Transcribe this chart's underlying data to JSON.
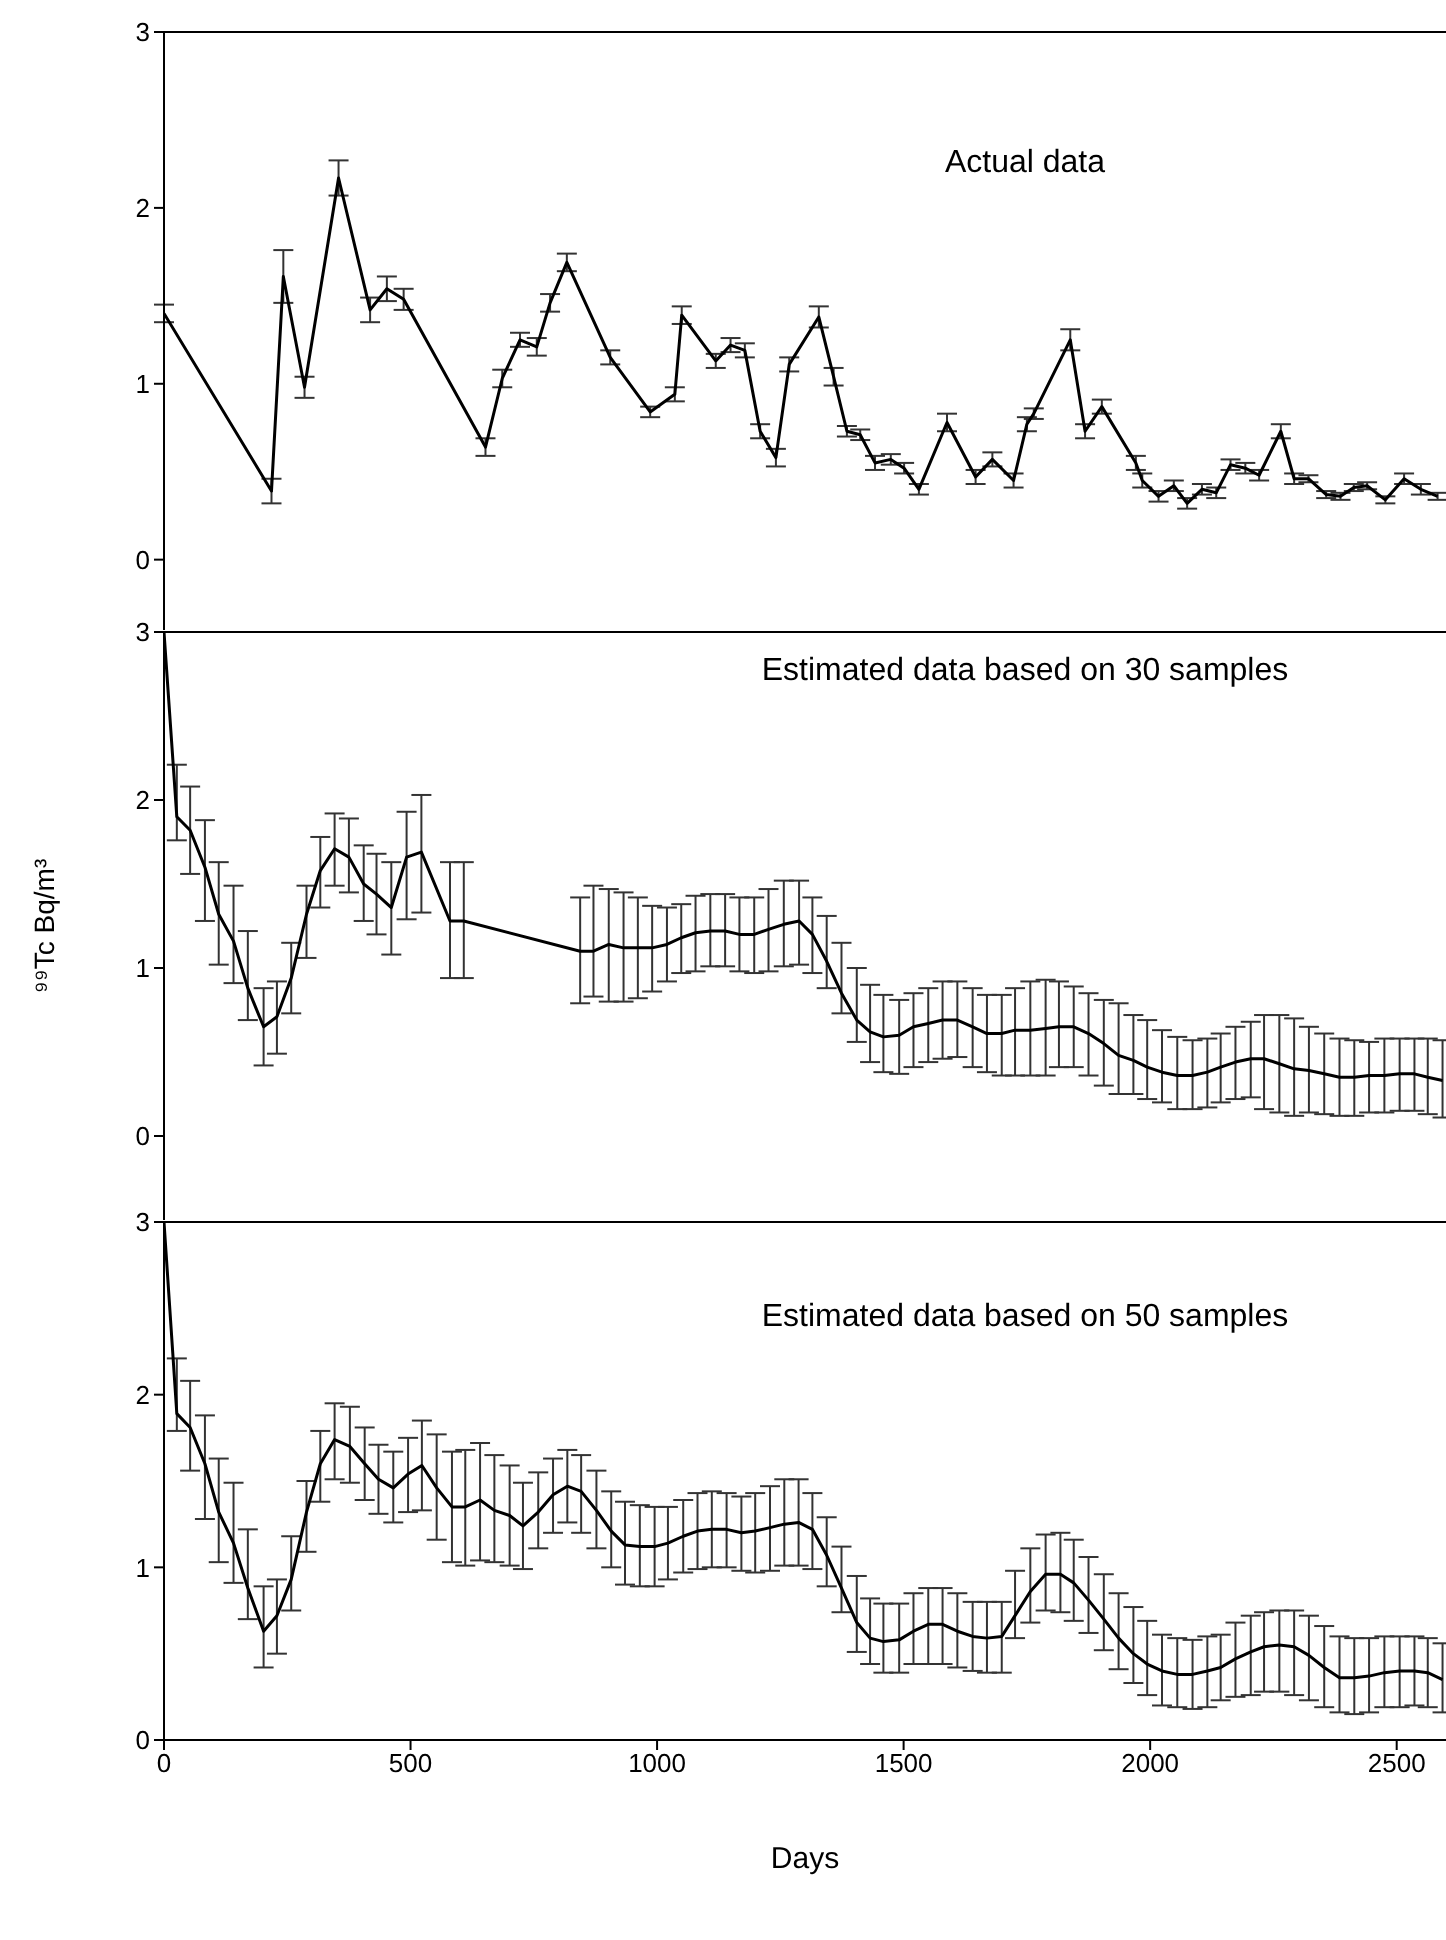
{
  "chart_data": [
    {
      "type": "line",
      "title": "Actual data",
      "xlim": [
        0,
        2600
      ],
      "xticks": [
        0,
        500,
        1000,
        1500,
        2000,
        2500
      ],
      "ylim": [
        -0.4,
        3
      ],
      "yticks": [
        0,
        1,
        2,
        3
      ],
      "tick_labels": "y",
      "marker": "none",
      "line_style": "solid",
      "series": [
        {
          "color": "#000000",
          "x": [
            0,
            218,
            242,
            285,
            354,
            418,
            452,
            486,
            652,
            686,
            722,
            756,
            783,
            817,
            905,
            986,
            1036,
            1050,
            1119,
            1149,
            1178,
            1209,
            1241,
            1268,
            1328,
            1358,
            1385,
            1412,
            1442,
            1474,
            1501,
            1531,
            1588,
            1646,
            1680,
            1723,
            1750,
            1764,
            1838,
            1868,
            1902,
            1971,
            1984,
            2017,
            2048,
            2075,
            2105,
            2134,
            2163,
            2193,
            2221,
            2265,
            2292,
            2321,
            2357,
            2386,
            2413,
            2440,
            2477,
            2515,
            2549,
            2583
          ],
          "values": [
            1.4,
            0.39,
            1.61,
            0.98,
            2.17,
            1.42,
            1.54,
            1.48,
            0.64,
            1.03,
            1.25,
            1.21,
            1.46,
            1.69,
            1.15,
            0.84,
            0.94,
            1.39,
            1.13,
            1.22,
            1.19,
            0.73,
            0.58,
            1.11,
            1.38,
            1.04,
            0.73,
            0.71,
            0.55,
            0.57,
            0.52,
            0.4,
            0.78,
            0.47,
            0.57,
            0.45,
            0.77,
            0.83,
            1.25,
            0.73,
            0.87,
            0.55,
            0.45,
            0.36,
            0.42,
            0.32,
            0.4,
            0.38,
            0.54,
            0.52,
            0.48,
            0.73,
            0.46,
            0.46,
            0.37,
            0.36,
            0.41,
            0.42,
            0.34,
            0.46,
            0.4,
            0.36
          ],
          "errors": [
            0.05,
            0.07,
            0.15,
            0.06,
            0.1,
            0.07,
            0.07,
            0.06,
            0.05,
            0.05,
            0.04,
            0.05,
            0.05,
            0.05,
            0.04,
            0.03,
            0.04,
            0.05,
            0.04,
            0.04,
            0.04,
            0.04,
            0.05,
            0.04,
            0.06,
            0.05,
            0.03,
            0.03,
            0.04,
            0.03,
            0.03,
            0.03,
            0.05,
            0.04,
            0.04,
            0.04,
            0.04,
            0.03,
            0.06,
            0.04,
            0.04,
            0.04,
            0.04,
            0.03,
            0.03,
            0.03,
            0.03,
            0.03,
            0.03,
            0.03,
            0.03,
            0.04,
            0.03,
            0.02,
            0.02,
            0.02,
            0.02,
            0.02,
            0.02,
            0.03,
            0.03,
            0.02
          ]
        }
      ]
    },
    {
      "type": "line",
      "title": "Estimated data based on 30 samples",
      "ylabel": "⁹⁹Tc Bq/m³",
      "xlim": [
        0,
        2600
      ],
      "xticks": [
        0,
        500,
        1000,
        1500,
        2000,
        2500
      ],
      "ylim": [
        -0.5,
        3
      ],
      "yticks": [
        0,
        1,
        2,
        3
      ],
      "tick_labels": "y",
      "marker": "none",
      "line_style": "solid",
      "series": [
        {
          "color": "#000000",
          "x": [
            0,
            26,
            53,
            83,
            111,
            141,
            170,
            202,
            229,
            258,
            289,
            317,
            346,
            375,
            405,
            431,
            461,
            492,
            522,
            580,
            608,
            844,
            871,
            902,
            932,
            961,
            990,
            1020,
            1049,
            1078,
            1108,
            1138,
            1167,
            1197,
            1226,
            1257,
            1288,
            1315,
            1344,
            1374,
            1405,
            1432,
            1459,
            1491,
            1520,
            1550,
            1579,
            1609,
            1640,
            1669,
            1699,
            1726,
            1757,
            1788,
            1815,
            1845,
            1875,
            1906,
            1936,
            1966,
            1994,
            2024,
            2055,
            2086,
            2116,
            2143,
            2173,
            2204,
            2231,
            2262,
            2292,
            2322,
            2353,
            2384,
            2414,
            2444,
            2475,
            2506,
            2536,
            2563,
            2593
          ],
          "values": [
            3.0,
            1.9,
            1.82,
            1.6,
            1.32,
            1.16,
            0.88,
            0.65,
            0.71,
            0.94,
            1.32,
            1.58,
            1.71,
            1.66,
            1.5,
            1.44,
            1.36,
            1.66,
            1.69,
            1.28,
            1.28,
            1.1,
            1.1,
            1.14,
            1.12,
            1.12,
            1.12,
            1.14,
            1.18,
            1.21,
            1.22,
            1.22,
            1.2,
            1.2,
            1.23,
            1.26,
            1.28,
            1.2,
            1.04,
            0.85,
            0.69,
            0.62,
            0.59,
            0.6,
            0.65,
            0.67,
            0.69,
            0.69,
            0.65,
            0.61,
            0.61,
            0.63,
            0.63,
            0.64,
            0.65,
            0.65,
            0.61,
            0.55,
            0.48,
            0.45,
            0.41,
            0.38,
            0.36,
            0.36,
            0.38,
            0.41,
            0.44,
            0.46,
            0.46,
            0.43,
            0.4,
            0.39,
            0.37,
            0.35,
            0.35,
            0.36,
            0.36,
            0.37,
            0.37,
            0.35,
            0.33
          ],
          "errors": [
            null,
            [
              1.76,
              2.21
            ],
            [
              1.56,
              2.08
            ],
            [
              1.28,
              1.88
            ],
            [
              1.02,
              1.63
            ],
            [
              0.91,
              1.49
            ],
            [
              0.69,
              1.22
            ],
            [
              0.42,
              0.88
            ],
            [
              0.49,
              0.92
            ],
            [
              0.73,
              1.15
            ],
            [
              1.06,
              1.49
            ],
            [
              1.36,
              1.78
            ],
            [
              1.49,
              1.92
            ],
            [
              1.45,
              1.89
            ],
            [
              1.28,
              1.73
            ],
            [
              1.2,
              1.68
            ],
            [
              1.08,
              1.63
            ],
            [
              1.29,
              1.93
            ],
            [
              1.33,
              2.03
            ],
            [
              0.94,
              1.63
            ],
            [
              0.94,
              1.63
            ],
            [
              0.79,
              1.42
            ],
            [
              0.83,
              1.49
            ],
            [
              0.8,
              1.47
            ],
            [
              0.8,
              1.45
            ],
            [
              0.82,
              1.42
            ],
            [
              0.86,
              1.37
            ],
            [
              0.92,
              1.36
            ],
            [
              0.97,
              1.38
            ],
            [
              0.98,
              1.43
            ],
            [
              1.01,
              1.44
            ],
            [
              1.01,
              1.44
            ],
            [
              0.98,
              1.42
            ],
            [
              0.97,
              1.42
            ],
            [
              0.98,
              1.47
            ],
            [
              1.01,
              1.52
            ],
            [
              1.02,
              1.52
            ],
            [
              0.97,
              1.42
            ],
            [
              0.88,
              1.31
            ],
            [
              0.73,
              1.15
            ],
            [
              0.56,
              1.0
            ],
            [
              0.44,
              0.9
            ],
            [
              0.38,
              0.84
            ],
            [
              0.37,
              0.81
            ],
            [
              0.41,
              0.85
            ],
            [
              0.44,
              0.88
            ],
            [
              0.46,
              0.92
            ],
            [
              0.47,
              0.92
            ],
            [
              0.41,
              0.88
            ],
            [
              0.38,
              0.84
            ],
            [
              0.36,
              0.84
            ],
            [
              0.36,
              0.88
            ],
            [
              0.36,
              0.92
            ],
            [
              0.36,
              0.93
            ],
            [
              0.41,
              0.92
            ],
            [
              0.41,
              0.89
            ],
            [
              0.36,
              0.85
            ],
            [
              0.3,
              0.81
            ],
            [
              0.25,
              0.79
            ],
            [
              0.25,
              0.72
            ],
            [
              0.22,
              0.69
            ],
            [
              0.2,
              0.63
            ],
            [
              0.16,
              0.59
            ],
            [
              0.16,
              0.57
            ],
            [
              0.17,
              0.58
            ],
            [
              0.2,
              0.61
            ],
            [
              0.22,
              0.65
            ],
            [
              0.23,
              0.68
            ],
            [
              0.16,
              0.72
            ],
            [
              0.14,
              0.72
            ],
            [
              0.12,
              0.7
            ],
            [
              0.14,
              0.65
            ],
            [
              0.13,
              0.61
            ],
            [
              0.12,
              0.58
            ],
            [
              0.12,
              0.57
            ],
            [
              0.14,
              0.56
            ],
            [
              0.14,
              0.58
            ],
            [
              0.15,
              0.58
            ],
            [
              0.15,
              0.58
            ],
            [
              0.13,
              0.58
            ],
            [
              0.11,
              0.57
            ]
          ]
        }
      ]
    },
    {
      "type": "line",
      "title": "Estimated data based on 50 samples",
      "xlabel": "Days",
      "xlim": [
        0,
        2600
      ],
      "xticks": [
        0,
        500,
        1000,
        1500,
        2000,
        2500
      ],
      "ylim": [
        0,
        3
      ],
      "yticks": [
        0,
        1,
        2,
        3
      ],
      "marker": "none",
      "line_style": "solid",
      "series": [
        {
          "color": "#000000",
          "x": [
            0,
            26,
            53,
            83,
            111,
            141,
            170,
            202,
            229,
            258,
            289,
            317,
            346,
            377,
            407,
            435,
            465,
            495,
            523,
            553,
            584,
            611,
            641,
            670,
            701,
            728,
            759,
            789,
            818,
            846,
            877,
            907,
            935,
            965,
            995,
            1022,
            1053,
            1082,
            1111,
            1141,
            1171,
            1199,
            1229,
            1258,
            1287,
            1315,
            1344,
            1374,
            1405,
            1432,
            1459,
            1491,
            1520,
            1550,
            1579,
            1609,
            1640,
            1669,
            1699,
            1726,
            1757,
            1788,
            1818,
            1845,
            1875,
            1906,
            1936,
            1966,
            1994,
            2024,
            2055,
            2086,
            2116,
            2143,
            2173,
            2204,
            2231,
            2262,
            2292,
            2322,
            2353,
            2384,
            2414,
            2444,
            2475,
            2506,
            2536,
            2563,
            2593
          ],
          "values": [
            3.0,
            1.89,
            1.81,
            1.6,
            1.32,
            1.14,
            0.88,
            0.63,
            0.72,
            0.93,
            1.32,
            1.6,
            1.74,
            1.7,
            1.6,
            1.51,
            1.46,
            1.54,
            1.59,
            1.46,
            1.35,
            1.35,
            1.39,
            1.33,
            1.3,
            1.24,
            1.32,
            1.42,
            1.47,
            1.44,
            1.33,
            1.21,
            1.13,
            1.12,
            1.12,
            1.14,
            1.18,
            1.21,
            1.22,
            1.22,
            1.2,
            1.21,
            1.23,
            1.25,
            1.26,
            1.22,
            1.07,
            0.88,
            0.68,
            0.59,
            0.57,
            0.58,
            0.63,
            0.67,
            0.67,
            0.63,
            0.6,
            0.59,
            0.6,
            0.72,
            0.86,
            0.96,
            0.96,
            0.91,
            0.81,
            0.7,
            0.59,
            0.5,
            0.44,
            0.4,
            0.38,
            0.38,
            0.4,
            0.42,
            0.47,
            0.51,
            0.54,
            0.55,
            0.54,
            0.49,
            0.42,
            0.36,
            0.36,
            0.37,
            0.39,
            0.4,
            0.4,
            0.39,
            0.35
          ],
          "errors": [
            null,
            [
              1.79,
              2.21
            ],
            [
              1.56,
              2.08
            ],
            [
              1.28,
              1.88
            ],
            [
              1.03,
              1.63
            ],
            [
              0.91,
              1.49
            ],
            [
              0.7,
              1.22
            ],
            [
              0.42,
              0.89
            ],
            [
              0.5,
              0.93
            ],
            [
              0.75,
              1.18
            ],
            [
              1.09,
              1.5
            ],
            [
              1.38,
              1.79
            ],
            [
              1.51,
              1.95
            ],
            [
              1.49,
              1.93
            ],
            [
              1.39,
              1.81
            ],
            [
              1.31,
              1.71
            ],
            [
              1.26,
              1.67
            ],
            [
              1.32,
              1.75
            ],
            [
              1.33,
              1.85
            ],
            [
              1.16,
              1.77
            ],
            [
              1.03,
              1.67
            ],
            [
              1.01,
              1.68
            ],
            [
              1.04,
              1.72
            ],
            [
              1.03,
              1.65
            ],
            [
              1.01,
              1.59
            ],
            [
              0.99,
              1.49
            ],
            [
              1.11,
              1.55
            ],
            [
              1.2,
              1.63
            ],
            [
              1.26,
              1.68
            ],
            [
              1.2,
              1.65
            ],
            [
              1.11,
              1.56
            ],
            [
              1.0,
              1.44
            ],
            [
              0.9,
              1.38
            ],
            [
              0.89,
              1.36
            ],
            [
              0.89,
              1.35
            ],
            [
              0.93,
              1.35
            ],
            [
              0.97,
              1.39
            ],
            [
              0.99,
              1.43
            ],
            [
              1.0,
              1.44
            ],
            [
              1.0,
              1.43
            ],
            [
              0.98,
              1.41
            ],
            [
              0.97,
              1.43
            ],
            [
              0.98,
              1.47
            ],
            [
              1.01,
              1.51
            ],
            [
              1.01,
              1.51
            ],
            [
              0.99,
              1.43
            ],
            [
              0.89,
              1.29
            ],
            [
              0.74,
              1.12
            ],
            [
              0.51,
              0.95
            ],
            [
              0.44,
              0.82
            ],
            [
              0.39,
              0.79
            ],
            [
              0.39,
              0.79
            ],
            [
              0.44,
              0.85
            ],
            [
              0.44,
              0.88
            ],
            [
              0.44,
              0.88
            ],
            [
              0.42,
              0.85
            ],
            [
              0.4,
              0.8
            ],
            [
              0.39,
              0.8
            ],
            [
              0.39,
              0.8
            ],
            [
              0.59,
              0.98
            ],
            [
              0.68,
              1.11
            ],
            [
              0.75,
              1.19
            ],
            [
              0.74,
              1.2
            ],
            [
              0.69,
              1.16
            ],
            [
              0.62,
              1.06
            ],
            [
              0.52,
              0.96
            ],
            [
              0.41,
              0.85
            ],
            [
              0.33,
              0.77
            ],
            [
              0.26,
              0.69
            ],
            [
              0.2,
              0.61
            ],
            [
              0.19,
              0.59
            ],
            [
              0.18,
              0.58
            ],
            [
              0.19,
              0.6
            ],
            [
              0.23,
              0.61
            ],
            [
              0.25,
              0.68
            ],
            [
              0.26,
              0.72
            ],
            [
              0.28,
              0.74
            ],
            [
              0.28,
              0.75
            ],
            [
              0.26,
              0.75
            ],
            [
              0.23,
              0.72
            ],
            [
              0.19,
              0.66
            ],
            [
              0.16,
              0.6
            ],
            [
              0.15,
              0.59
            ],
            [
              0.16,
              0.59
            ],
            [
              0.19,
              0.6
            ],
            [
              0.19,
              0.6
            ],
            [
              0.2,
              0.6
            ],
            [
              0.19,
              0.59
            ],
            [
              0.16,
              0.56
            ]
          ]
        }
      ]
    }
  ]
}
